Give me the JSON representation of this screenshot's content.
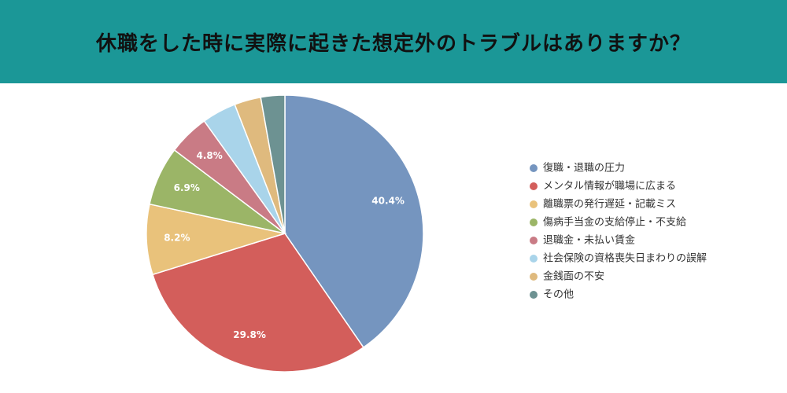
{
  "chart_data": {
    "type": "pie",
    "title": "休職をした時に実際に起きた想定外のトラブルはありますか？",
    "categories": [
      "復職・退職の圧力",
      "メンタル情報が職場に広まる",
      "離職票の発行遅延・記載ミス",
      "傷病手当金の支給停止・不支給",
      "退職金・未払い賃金",
      "社会保険の資格喪失日まわりの誤解",
      "金銭面の不安",
      "その他"
    ],
    "values": [
      40.4,
      29.8,
      8.2,
      6.9,
      4.8,
      4.0,
      3.1,
      2.8
    ],
    "value_labels": [
      "40.4%",
      "29.8%",
      "8.2%",
      "6.9%",
      "4.8%",
      null,
      null,
      null
    ],
    "colors": [
      "#7595bf",
      "#d35e5b",
      "#e9c27b",
      "#9bb567",
      "#c97b85",
      "#a9d4ea",
      "#dfba7e",
      "#6d9292"
    ],
    "legend": "right"
  }
}
